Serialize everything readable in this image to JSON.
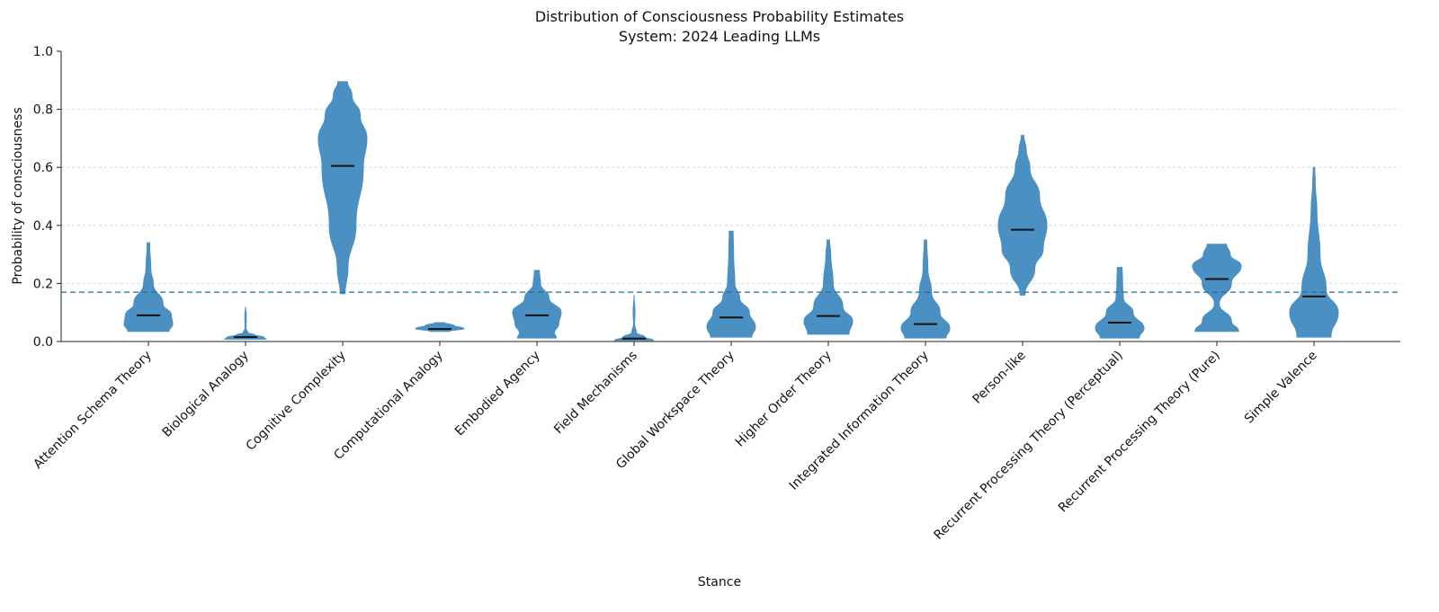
{
  "chart_data": {
    "type": "violin",
    "title": "Distribution of Consciousness Probability Estimates",
    "subtitle": "System: 2024 Leading LLMs",
    "xlabel": "Stance",
    "ylabel": "Probability of consciousness",
    "ylim": [
      0,
      1.0
    ],
    "yticks": [
      "0.0",
      "0.2",
      "0.4",
      "0.6",
      "0.8",
      "1.0"
    ],
    "grid": "horizontal dashed",
    "reference_line": 0.17,
    "colors": {
      "violin": "#4a90c2",
      "median": "#111111",
      "reference": "#1f6f9a",
      "grid": "#d0d0d0"
    },
    "categories": [
      "Attention Schema Theory",
      "Biological Analogy",
      "Cognitive Complexity",
      "Computational Analogy",
      "Embodied Agency",
      "Field Mechanisms",
      "Global Workspace Theory",
      "Higher Order Theory",
      "Integrated Information Theory",
      "Person-like",
      "Recurrent Processing Theory (Perceptual)",
      "Recurrent Processing Theory (Pure)",
      "Simple Valence"
    ],
    "medians": [
      0.09,
      0.015,
      0.605,
      0.043,
      0.09,
      0.01,
      0.083,
      0.088,
      0.06,
      0.385,
      0.065,
      0.215,
      0.155
    ],
    "density_profiles": [
      [
        [
          0.035,
          0.85
        ],
        [
          0.06,
          1.0
        ],
        [
          0.09,
          0.95
        ],
        [
          0.13,
          0.6
        ],
        [
          0.2,
          0.2
        ],
        [
          0.25,
          0.1
        ],
        [
          0.34,
          0.05
        ]
      ],
      [
        [
          0.008,
          0.85
        ],
        [
          0.015,
          0.75
        ],
        [
          0.022,
          0.4
        ],
        [
          0.03,
          0.1
        ],
        [
          0.045,
          0.02
        ],
        [
          0.09,
          0.03
        ],
        [
          0.12,
          0.0
        ]
      ],
      [
        [
          0.165,
          0.1
        ],
        [
          0.25,
          0.22
        ],
        [
          0.4,
          0.55
        ],
        [
          0.6,
          0.85
        ],
        [
          0.7,
          1.0
        ],
        [
          0.78,
          0.72
        ],
        [
          0.85,
          0.38
        ],
        [
          0.895,
          0.2
        ]
      ],
      [
        [
          0.035,
          0.4
        ],
        [
          0.045,
          1.0
        ],
        [
          0.055,
          0.6
        ],
        [
          0.065,
          0.2
        ]
      ],
      [
        [
          0.012,
          0.8
        ],
        [
          0.03,
          0.72
        ],
        [
          0.06,
          0.9
        ],
        [
          0.1,
          1.0
        ],
        [
          0.15,
          0.5
        ],
        [
          0.2,
          0.15
        ],
        [
          0.245,
          0.1
        ]
      ],
      [
        [
          0.004,
          0.8
        ],
        [
          0.015,
          0.45
        ],
        [
          0.03,
          0.1
        ],
        [
          0.06,
          0.02
        ],
        [
          0.1,
          0.04
        ],
        [
          0.16,
          0.0
        ]
      ],
      [
        [
          0.015,
          0.85
        ],
        [
          0.05,
          1.0
        ],
        [
          0.1,
          0.75
        ],
        [
          0.15,
          0.35
        ],
        [
          0.2,
          0.15
        ],
        [
          0.3,
          0.1
        ],
        [
          0.38,
          0.08
        ]
      ],
      [
        [
          0.025,
          0.85
        ],
        [
          0.07,
          1.0
        ],
        [
          0.12,
          0.6
        ],
        [
          0.2,
          0.2
        ],
        [
          0.3,
          0.1
        ],
        [
          0.35,
          0.05
        ]
      ],
      [
        [
          0.012,
          0.85
        ],
        [
          0.045,
          1.0
        ],
        [
          0.1,
          0.6
        ],
        [
          0.17,
          0.25
        ],
        [
          0.25,
          0.1
        ],
        [
          0.35,
          0.05
        ]
      ],
      [
        [
          0.16,
          0.1
        ],
        [
          0.25,
          0.5
        ],
        [
          0.32,
          0.85
        ],
        [
          0.4,
          1.0
        ],
        [
          0.5,
          0.7
        ],
        [
          0.6,
          0.3
        ],
        [
          0.66,
          0.15
        ],
        [
          0.71,
          0.05
        ]
      ],
      [
        [
          0.012,
          0.8
        ],
        [
          0.045,
          1.0
        ],
        [
          0.1,
          0.55
        ],
        [
          0.15,
          0.15
        ],
        [
          0.2,
          0.12
        ],
        [
          0.255,
          0.1
        ]
      ],
      [
        [
          0.035,
          0.9
        ],
        [
          0.07,
          0.6
        ],
        [
          0.13,
          0.1
        ],
        [
          0.2,
          0.6
        ],
        [
          0.26,
          1.0
        ],
        [
          0.3,
          0.55
        ],
        [
          0.335,
          0.4
        ]
      ],
      [
        [
          0.015,
          0.7
        ],
        [
          0.1,
          1.0
        ],
        [
          0.18,
          0.5
        ],
        [
          0.3,
          0.25
        ],
        [
          0.45,
          0.12
        ],
        [
          0.55,
          0.05
        ],
        [
          0.6,
          0.03
        ]
      ]
    ]
  }
}
